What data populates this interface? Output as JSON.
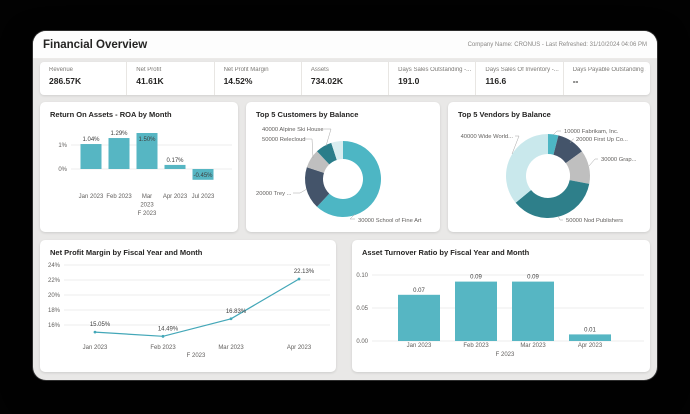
{
  "header": {
    "title": "Financial Overview",
    "meta": "Company Name: CRONUS - Last Refreshed: 31/10/2024 04:06 PM"
  },
  "kpis": [
    {
      "label": "Revenue",
      "value": "286.57K"
    },
    {
      "label": "Net Profit",
      "value": "41.61K"
    },
    {
      "label": "Net Profit Margin",
      "value": "14.52%"
    },
    {
      "label": "Assets",
      "value": "734.02K"
    },
    {
      "label": "Days Sales Outstanding -...",
      "value": "191.0"
    },
    {
      "label": "Days Sales Of Inventory -...",
      "value": "116.6"
    },
    {
      "label": "Days Payable Outstanding ...",
      "value": "--"
    }
  ],
  "colors": {
    "bar_teal": "#56b6c3",
    "line_teal": "#43a7b8",
    "grid": "#e7e7e7",
    "axis_text": "#605e5c",
    "value_text": "#404040",
    "leader_line": "#a6a6a6"
  },
  "chart_data": [
    {
      "id": "roa",
      "type": "bar",
      "title": "Return On Assets - ROA by Month",
      "categories": [
        "Jan 2023",
        "Feb 2023",
        "Mar 2023",
        "Apr 2023",
        "Jul 2023"
      ],
      "values": [
        1.04,
        1.29,
        1.5,
        0.17,
        -0.45
      ],
      "value_labels": [
        "1.04%",
        "1.29%",
        "1.50%",
        "0.17%",
        "-0.45%"
      ],
      "yticks": [
        "1%",
        "0%"
      ],
      "ytick_values": [
        1,
        0
      ],
      "ylim": [
        -0.6,
        1.6
      ],
      "fiscal_label": "F 2023",
      "color": "#56b6c3"
    },
    {
      "id": "customers",
      "type": "donut",
      "title": "Top 5 Customers by Balance",
      "slices": [
        {
          "label": "30000 School of Fine Art",
          "pct": 62,
          "color": "#4db6c4"
        },
        {
          "label": "20000 Trey ...",
          "pct": 18,
          "color": "#44546a"
        },
        {
          "label": "50000 Relecloud",
          "pct": 8,
          "color": "#bfbfbf"
        },
        {
          "label": "40000 Alpine Ski House",
          "pct": 7,
          "color": "#2a7d8a"
        },
        {
          "label": "",
          "pct": 5,
          "color": "#d9edf0"
        }
      ]
    },
    {
      "id": "vendors",
      "type": "donut",
      "title": "Top 5 Vendors by Balance",
      "slices": [
        {
          "label": "10000 Fabrikam, Inc.",
          "pct": 4,
          "color": "#4db6c4"
        },
        {
          "label": "20000 First Up Co...",
          "pct": 11,
          "color": "#44546a"
        },
        {
          "label": "30000 Grap...",
          "pct": 13,
          "color": "#bfbfbf"
        },
        {
          "label": "50000 Nod Publishers",
          "pct": 36,
          "color": "#2e7f8a"
        },
        {
          "label": "40000 Wide World...",
          "pct": 36,
          "color": "#c9e8ec"
        }
      ]
    },
    {
      "id": "npm",
      "type": "line",
      "title": "Net Profit Margin by Fiscal Year and Month",
      "categories": [
        "Jan 2023",
        "Feb 2023",
        "Mar 2023",
        "Apr 2023"
      ],
      "values": [
        15.05,
        14.49,
        16.83,
        22.13
      ],
      "value_labels": [
        "15.05%",
        "14.49%",
        "16.83%",
        "22.13%"
      ],
      "yticks": [
        "24%",
        "22%",
        "20%",
        "18%",
        "16%"
      ],
      "ytick_values": [
        24,
        22,
        20,
        18,
        16
      ],
      "ylim": [
        14,
        25
      ],
      "fiscal_label": "F 2023",
      "color": "#43a7b8"
    },
    {
      "id": "atr",
      "type": "bar",
      "title": "Asset Turnover Ratio by Fiscal Year and Month",
      "categories": [
        "Jan 2023",
        "Feb 2023",
        "Mar 2023",
        "Apr 2023"
      ],
      "values": [
        0.07,
        0.09,
        0.09,
        0.01
      ],
      "value_labels": [
        "0.07",
        "0.09",
        "0.09",
        "0.01"
      ],
      "yticks": [
        "0.10",
        "0.05",
        "0.00"
      ],
      "ytick_values": [
        0.1,
        0.05,
        0.0
      ],
      "ylim": [
        0,
        0.105
      ],
      "fiscal_label": "F 2023",
      "color": "#56b6c3"
    }
  ]
}
